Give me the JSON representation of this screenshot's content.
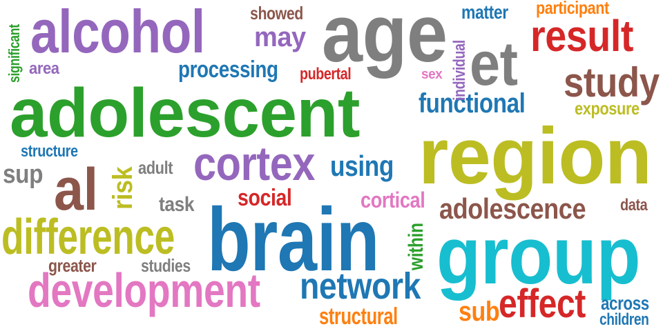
{
  "palette": {
    "purple": "#9467bd",
    "gray": "#7f7f7f",
    "green": "#2ca02c",
    "olive": "#bcbd22",
    "blue": "#1f77b4",
    "cyan": "#17becf",
    "brown": "#8c564b",
    "red": "#d62728",
    "pink": "#e377c2",
    "orange": "#ff7f0e"
  },
  "words": [
    {
      "key": "alcohol",
      "text": "alcohol",
      "color": "#9467bd"
    },
    {
      "key": "age",
      "text": "age",
      "color": "#7f7f7f"
    },
    {
      "key": "adolescent",
      "text": "adolescent",
      "color": "#2ca02c"
    },
    {
      "key": "region",
      "text": "region",
      "color": "#bcbd22"
    },
    {
      "key": "brain",
      "text": "brain",
      "color": "#1f77b4"
    },
    {
      "key": "group",
      "text": "group",
      "color": "#17becf"
    },
    {
      "key": "et",
      "text": "et",
      "color": "#7f7f7f"
    },
    {
      "key": "result",
      "text": "result",
      "color": "#d62728"
    },
    {
      "key": "study",
      "text": "study",
      "color": "#8c564b"
    },
    {
      "key": "al",
      "text": "al",
      "color": "#8c564b"
    },
    {
      "key": "cortex",
      "text": "cortex",
      "color": "#9467bd"
    },
    {
      "key": "difference",
      "text": "difference",
      "color": "#bcbd22"
    },
    {
      "key": "development",
      "text": "development",
      "color": "#e377c2"
    },
    {
      "key": "network",
      "text": "network",
      "color": "#1f77b4"
    },
    {
      "key": "effect",
      "text": "effect",
      "color": "#d62728"
    },
    {
      "key": "adolescence",
      "text": "adolescence",
      "color": "#8c564b"
    },
    {
      "key": "functional",
      "text": "functional",
      "color": "#1f77b4"
    },
    {
      "key": "using",
      "text": "using",
      "color": "#1f77b4"
    },
    {
      "key": "may",
      "text": "may",
      "color": "#9467bd"
    },
    {
      "key": "processing",
      "text": "processing",
      "color": "#1f77b4"
    },
    {
      "key": "social",
      "text": "social",
      "color": "#d62728"
    },
    {
      "key": "cortical",
      "text": "cortical",
      "color": "#e377c2"
    },
    {
      "key": "risk",
      "text": "risk",
      "color": "#bcbd22"
    },
    {
      "key": "showed",
      "text": "showed",
      "color": "#8c564b"
    },
    {
      "key": "matter",
      "text": "matter",
      "color": "#1f77b4"
    },
    {
      "key": "participant",
      "text": "participant",
      "color": "#ff7f0e"
    },
    {
      "key": "exposure",
      "text": "exposure",
      "color": "#bcbd22"
    },
    {
      "key": "pubertal",
      "text": "pubertal",
      "color": "#d62728"
    },
    {
      "key": "sex",
      "text": "sex",
      "color": "#e377c2"
    },
    {
      "key": "individual",
      "text": "individual",
      "color": "#9467bd"
    },
    {
      "key": "significant",
      "text": "significant",
      "color": "#2ca02c"
    },
    {
      "key": "area",
      "text": "area",
      "color": "#9467bd"
    },
    {
      "key": "structure",
      "text": "structure",
      "color": "#1f77b4"
    },
    {
      "key": "sup",
      "text": "sup",
      "color": "#7f7f7f"
    },
    {
      "key": "adult",
      "text": "adult",
      "color": "#7f7f7f"
    },
    {
      "key": "task",
      "text": "task",
      "color": "#7f7f7f"
    },
    {
      "key": "data",
      "text": "data",
      "color": "#8c564b"
    },
    {
      "key": "within",
      "text": "within",
      "color": "#2ca02c"
    },
    {
      "key": "greater",
      "text": "greater",
      "color": "#8c564b"
    },
    {
      "key": "studies",
      "text": "studies",
      "color": "#7f7f7f"
    },
    {
      "key": "structural",
      "text": "structural",
      "color": "#ff7f0e"
    },
    {
      "key": "sub",
      "text": "sub",
      "color": "#ff7f0e"
    },
    {
      "key": "across",
      "text": "across",
      "color": "#1f77b4"
    },
    {
      "key": "children",
      "text": "children",
      "color": "#1f77b4"
    }
  ]
}
